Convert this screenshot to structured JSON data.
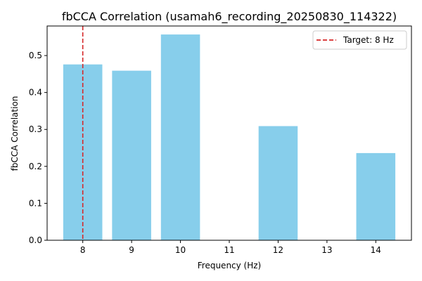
{
  "chart_data": {
    "type": "bar",
    "title": "fbCCA Correlation (usamah6_recording_20250830_114322)",
    "xlabel": "Frequency (Hz)",
    "ylabel": "fbCCA Correlation",
    "x_ticks": [
      8,
      9,
      10,
      11,
      12,
      13,
      14
    ],
    "y_ticks": [
      "0.0",
      "0.1",
      "0.2",
      "0.3",
      "0.4",
      "0.5"
    ],
    "ylim": [
      0,
      0.58
    ],
    "xlim": [
      7.27,
      14.73
    ],
    "bars": [
      {
        "x": 8,
        "value": 0.476
      },
      {
        "x": 9,
        "value": 0.459
      },
      {
        "x": 10,
        "value": 0.557
      },
      {
        "x": 12,
        "value": 0.309
      },
      {
        "x": 14,
        "value": 0.236
      }
    ],
    "bar_color": "#87ceeb",
    "grid": false,
    "target_line": {
      "x": 8,
      "label": "Target: 8 Hz",
      "color": "#d62728",
      "style": "dashed"
    },
    "legend_position": "top-right"
  }
}
